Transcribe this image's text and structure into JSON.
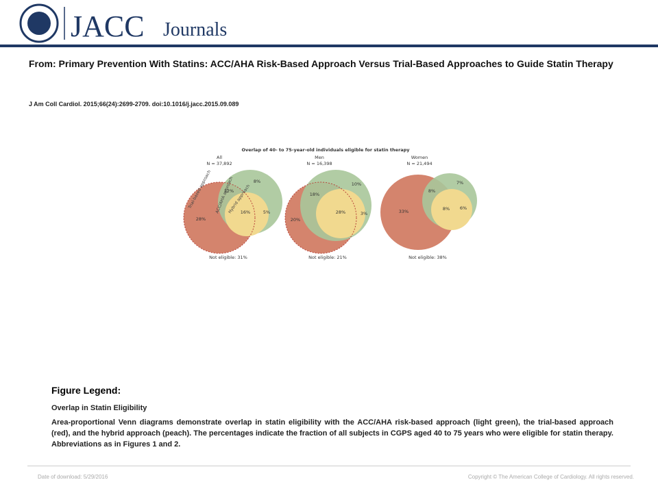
{
  "header": {
    "brand": "JACC",
    "brand_suffix": "Journals"
  },
  "title": "From: Primary Prevention With Statins: ACC/AHA Risk-Based Approach Versus Trial-Based Approaches to Guide Statin Therapy",
  "citation": "J Am Coll Cardiol. 2015;66(24):2699-2709. doi:10.1016/j.jacc.2015.09.089",
  "figure": {
    "title": "Overlap of 40- to 75-year-old individuals eligible for statin therapy",
    "approach_labels": [
      "Trial-based approach",
      "ACC/AHA approach",
      "Hybrid approach"
    ],
    "panels": [
      {
        "name": "All",
        "n": "N = 37,892",
        "regions": [
          "8%",
          "12%",
          "28%",
          "16%",
          "5%"
        ],
        "not_eligible": "Not eligible: 31%"
      },
      {
        "name": "Men",
        "n": "N = 16,398",
        "regions": [
          "18%",
          "10%",
          "20%",
          "28%",
          "3%"
        ],
        "not_eligible": "Not eligible: 21%"
      },
      {
        "name": "Women",
        "n": "N = 21,494",
        "regions": [
          "33%",
          "8%",
          "7%",
          "8%",
          "6%"
        ],
        "not_eligible": "Not eligible: 38%"
      }
    ]
  },
  "legend": {
    "heading": "Figure Legend:",
    "subtitle": "Overlap in Statin Eligibility",
    "text": "Area-proportional Venn diagrams demonstrate overlap in statin eligibility with the ACC/AHA risk-based approach (light green), the trial-based approach (red), and the hybrid approach (peach). The percentages indicate the fraction of all subjects in CGPS aged 40 to 75 years who were eligible for statin therapy. Abbreviations as in Figures 1 and 2."
  },
  "footer": {
    "date": "Date of download: 5/29/2016",
    "copyright": "Copyright © The American College of Cardiology. All rights reserved."
  }
}
